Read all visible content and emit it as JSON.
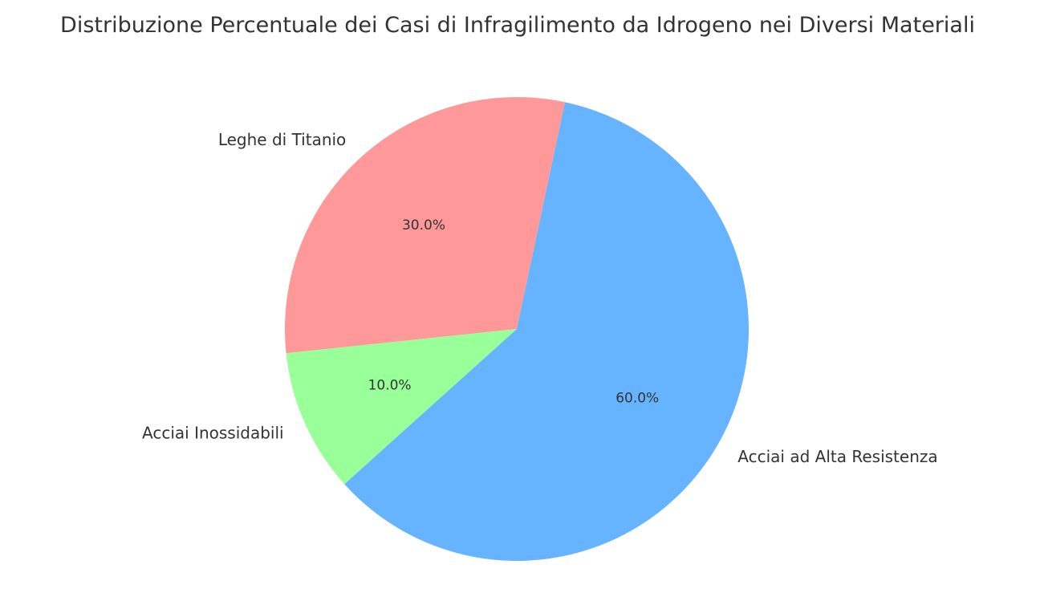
{
  "chart_data": {
    "type": "pie",
    "title": "Distribuzione Percentuale dei Casi di Infragilimento da Idrogeno nei Diversi Materiali",
    "slices": [
      {
        "label": "Leghe di Titanio",
        "value": 30.0,
        "pct_label": "30.0%",
        "color": "#ff9999"
      },
      {
        "label": "Acciai Inossidabili",
        "value": 10.0,
        "pct_label": "10.0%",
        "color": "#99ff99"
      },
      {
        "label": "Acciai ad Alta Resistenza",
        "value": 60.0,
        "pct_label": "60.0%",
        "color": "#66b3ff"
      }
    ],
    "start_angle_deg": 78,
    "direction": "counterclockwise",
    "legend": "none"
  }
}
